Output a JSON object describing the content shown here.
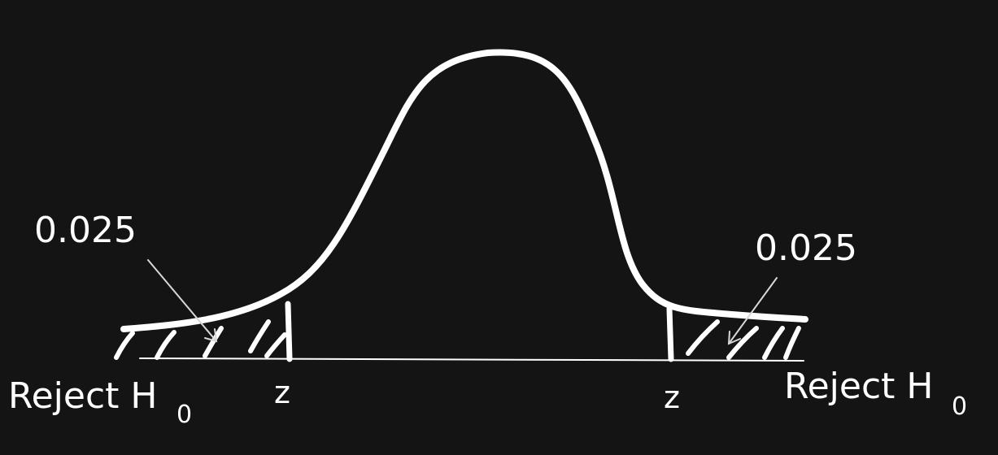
{
  "background_color": "#141414",
  "stroke_color": "#ffffff",
  "left_tail": {
    "probability": "0.025",
    "reject_text": "Reject H",
    "subscript": "0",
    "critical_label": "z"
  },
  "right_tail": {
    "probability": "0.025",
    "reject_text": "Reject H",
    "subscript": "0",
    "critical_label": "z"
  }
}
